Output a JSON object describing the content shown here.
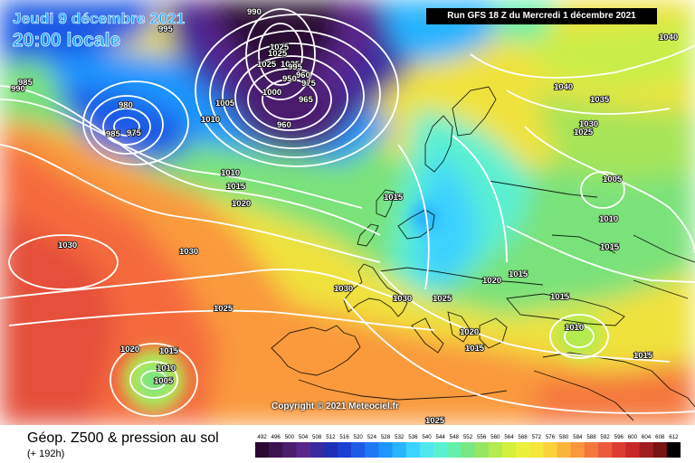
{
  "header": {
    "date": "Jeudi 9 décembre 2021",
    "time": "20:00 locale",
    "run": "Run GFS 18 Z du Mercredi 1 décembre 2021"
  },
  "footer": {
    "title": "Géop. Z500 & pression au sol",
    "subtitle": "(+ 192h)",
    "copyright": "Copyright © 2021 Meteociel.fr"
  },
  "scale": {
    "labels": [
      "492",
      "496",
      "500",
      "504",
      "508",
      "512",
      "516",
      "520",
      "524",
      "528",
      "532",
      "536",
      "540",
      "544",
      "548",
      "552",
      "556",
      "560",
      "564",
      "568",
      "572",
      "576",
      "580",
      "584",
      "588",
      "592",
      "596",
      "600",
      "604",
      "608",
      "612"
    ],
    "colors": [
      "#2a0a32",
      "#3c1450",
      "#4b1e6e",
      "#5a288c",
      "#3a2aa0",
      "#1e2fb4",
      "#1a3fd2",
      "#1e5ae6",
      "#1e78f5",
      "#1e96ff",
      "#28b4ff",
      "#3cd2ff",
      "#50e6f0",
      "#5af0d2",
      "#64f0aa",
      "#78e682",
      "#96e664",
      "#b4eb50",
      "#d2f03c",
      "#ebf03c",
      "#f5e63c",
      "#fad23c",
      "#fab43c",
      "#fa963c",
      "#f5783c",
      "#eb5a3c",
      "#dc3c32",
      "#c82828",
      "#a01e1e",
      "#781414",
      "#000000"
    ]
  },
  "isobar_labels": [
    {
      "text": "990"
    },
    {
      "text": "995"
    },
    {
      "text": "1025"
    },
    {
      "text": "1025"
    },
    {
      "text": "1025"
    },
    {
      "text": "1025"
    },
    {
      "text": "995"
    },
    {
      "text": "990"
    },
    {
      "text": "985"
    },
    {
      "text": "980"
    },
    {
      "text": "975"
    },
    {
      "text": "985"
    },
    {
      "text": "1005"
    },
    {
      "text": "1010"
    },
    {
      "text": "1000"
    },
    {
      "text": "960"
    },
    {
      "text": "960"
    },
    {
      "text": "965"
    },
    {
      "text": "950"
    },
    {
      "text": "975"
    },
    {
      "text": "1010"
    },
    {
      "text": "1015"
    },
    {
      "text": "1020"
    },
    {
      "text": "1015"
    },
    {
      "text": "1040"
    },
    {
      "text": "1040"
    },
    {
      "text": "1035"
    },
    {
      "text": "1030"
    },
    {
      "text": "1025"
    },
    {
      "text": "1005"
    },
    {
      "text": "1010"
    },
    {
      "text": "1015"
    },
    {
      "text": "1030"
    },
    {
      "text": "1030"
    },
    {
      "text": "1030"
    },
    {
      "text": "1030"
    },
    {
      "text": "1025"
    },
    {
      "text": "1020"
    },
    {
      "text": "1020"
    },
    {
      "text": "1015"
    },
    {
      "text": "1015"
    },
    {
      "text": "1010"
    },
    {
      "text": "1015"
    },
    {
      "text": "1025"
    },
    {
      "text": "1020"
    },
    {
      "text": "1015"
    },
    {
      "text": "1010"
    },
    {
      "text": "1005"
    },
    {
      "text": "1015"
    },
    {
      "text": "1025"
    }
  ]
}
